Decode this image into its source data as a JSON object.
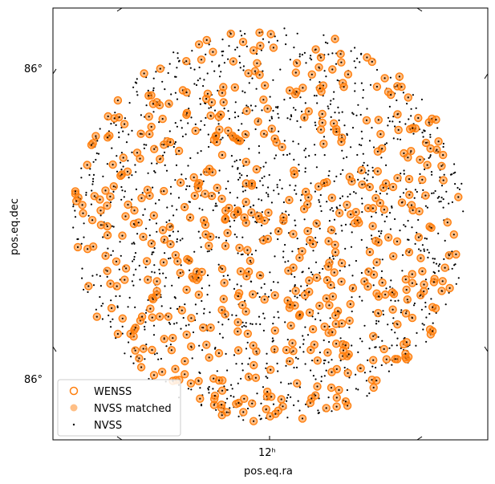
{
  "chart_data": {
    "type": "scatter",
    "xlabel": "pos.eq.ra",
    "ylabel": "pos.eq.dec",
    "x_tick_labels": [
      "12ʰ"
    ],
    "y_tick_labels": [
      "86°",
      "86°"
    ],
    "legend_position": "lower-left",
    "grid": false,
    "field_shape": "circle",
    "series": [
      {
        "name": "WENSS",
        "marker": "open-circle",
        "color": "#ff7f0e",
        "approx_count": 560
      },
      {
        "name": "NVSS matched",
        "marker": "filled-circle",
        "color": "#ff7f0e",
        "alpha": 0.5,
        "approx_count": 560
      },
      {
        "name": "NVSS",
        "marker": "dot",
        "color": "#000000",
        "approx_count": 1400
      }
    ]
  }
}
